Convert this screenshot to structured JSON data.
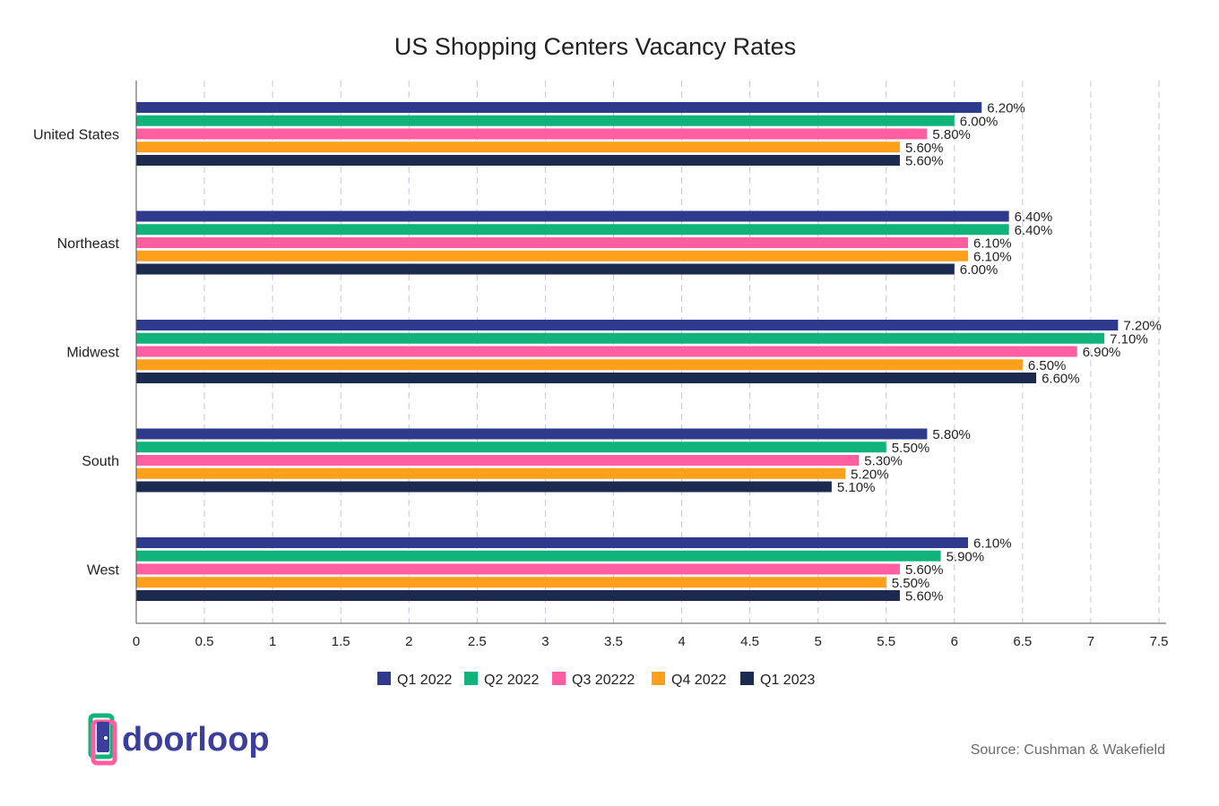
{
  "chart_data": {
    "type": "bar",
    "orientation": "horizontal",
    "title": "US Shopping Centers Vacancy Rates",
    "categories": [
      "United States",
      "Northeast",
      "Midwest",
      "South",
      "West"
    ],
    "series": [
      {
        "name": "Q1 2022",
        "color": "#2e3a8c",
        "values": [
          6.2,
          6.4,
          7.2,
          5.8,
          6.1
        ],
        "labels": [
          "6.20%",
          "6.40%",
          "7.20%",
          "5.80%",
          "6.10%"
        ]
      },
      {
        "name": "Q2 2022",
        "color": "#10b47a",
        "values": [
          6.0,
          6.4,
          7.1,
          5.5,
          5.9
        ],
        "labels": [
          "6.00%",
          "6.40%",
          "7.10%",
          "5.50%",
          "5.90%"
        ]
      },
      {
        "name": "Q3 20222",
        "color": "#ff5fa0",
        "values": [
          5.8,
          6.1,
          6.9,
          5.3,
          5.6
        ],
        "labels": [
          "5.80%",
          "6.10%",
          "6.90%",
          "5.30%",
          "5.60%"
        ]
      },
      {
        "name": "Q4 2022",
        "color": "#ff9f1a",
        "values": [
          5.6,
          6.1,
          6.5,
          5.2,
          5.5
        ],
        "labels": [
          "5.60%",
          "6.10%",
          "6.50%",
          "5.20%",
          "5.50%"
        ]
      },
      {
        "name": "Q1 2023",
        "color": "#1c2a4f",
        "values": [
          5.6,
          6.0,
          6.6,
          5.1,
          5.6
        ],
        "labels": [
          "5.60%",
          "6.00%",
          "6.60%",
          "5.10%",
          "5.60%"
        ]
      }
    ],
    "xlim": [
      0,
      7.5
    ],
    "xticks": [
      "0",
      "0.5",
      "1",
      "1.5",
      "2",
      "2.5",
      "3",
      "3.5",
      "4",
      "4.5",
      "5",
      "5.5",
      "6",
      "6.5",
      "7",
      "7.5"
    ],
    "grid": true,
    "legend_position": "bottom-center"
  },
  "footer": {
    "brand": "doorloop",
    "source": "Source: Cushman & Wakefield"
  },
  "colors": {
    "grid": "#c9c3d6",
    "axis": "#555555",
    "brand_dark": "#3d3d9b",
    "brand_green": "#10b47a",
    "brand_pink": "#ff5fa0"
  }
}
